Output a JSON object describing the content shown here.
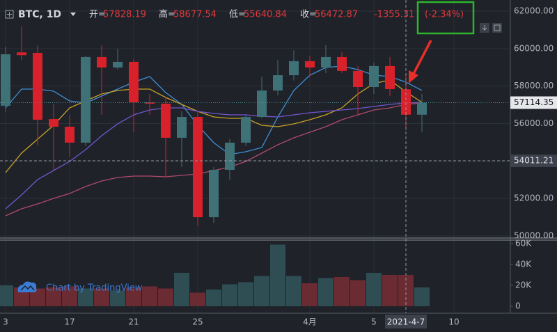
{
  "chart_data": {
    "type": "candlestick",
    "symbol": "BTC, 1D",
    "open_label": "开=",
    "high_label": "高=",
    "low_label": "低=",
    "close_label": "收=",
    "change": -1355.31,
    "change_pct": "(-2.34%)",
    "watermark": "Chart by TradingView",
    "categories": [
      "3",
      null,
      null,
      null,
      "17",
      null,
      null,
      null,
      "21",
      null,
      null,
      null,
      "25",
      null,
      null,
      null,
      null,
      null,
      null,
      "4月",
      null,
      null,
      null,
      "5",
      null,
      "2021-4-7",
      null,
      null,
      "10"
    ],
    "open": [
      56950,
      59800,
      59770,
      56240,
      55830,
      54980,
      59550,
      58990,
      59290,
      57130,
      57060,
      55240,
      56350,
      51000,
      53530,
      54980,
      56350,
      57760,
      58580,
      59330,
      58990,
      59550,
      58810,
      57950,
      59070,
      57828.19,
      56472.87,
      null,
      null
    ],
    "high": [
      60100,
      61200,
      60180,
      57020,
      56460,
      59620,
      60180,
      60000,
      59440,
      57580,
      57400,
      56650,
      56650,
      53680,
      55170,
      56460,
      58500,
      59400,
      59900,
      59620,
      60180,
      59810,
      59070,
      59250,
      59550,
      58677.54,
      57580,
      null,
      null
    ],
    "low": [
      56600,
      59400,
      54800,
      53500,
      54230,
      54800,
      56460,
      58880,
      55540,
      56460,
      53120,
      53680,
      50520,
      50700,
      53000,
      54800,
      56280,
      57500,
      58300,
      58500,
      58700,
      58700,
      56460,
      57580,
      57470,
      55640.84,
      55530,
      null,
      null
    ],
    "close": [
      59700,
      59650,
      56200,
      55830,
      54980,
      59550,
      58990,
      59290,
      57130,
      57060,
      55240,
      56350,
      51000,
      53530,
      54980,
      56350,
      57760,
      58580,
      59330,
      58990,
      59550,
      58810,
      57950,
      59070,
      57840,
      56472.87,
      57114.35,
      null,
      null
    ],
    "up_color": "#3f7277",
    "down_color": "#d8212b",
    "series": [
      {
        "color": "#3f8fd6",
        "values": [
          56836,
          57839,
          57839,
          57728,
          57208,
          57096,
          57468,
          57839,
          58211,
          58508,
          57653,
          57022,
          55907,
          54979,
          54347,
          54496,
          54719,
          56353,
          57765,
          58582,
          58991,
          59065,
          58879,
          58582,
          58508,
          58211,
          57765,
          null,
          null
        ]
      },
      {
        "color": "#c9a227",
        "values": [
          53381,
          54421,
          55164,
          55907,
          56836,
          57208,
          57579,
          57765,
          57839,
          57839,
          57393,
          57022,
          56650,
          56353,
          56279,
          56279,
          55907,
          55833,
          55982,
          56205,
          56465,
          56836,
          57579,
          58136,
          58322,
          57690,
          57133,
          null,
          null
        ]
      },
      {
        "color": "#7356d0",
        "values": [
          51449,
          52192,
          53009,
          53492,
          53975,
          54607,
          55350,
          55982,
          56465,
          56725,
          56836,
          56836,
          56650,
          56539,
          56465,
          56465,
          56390,
          56353,
          56465,
          56576,
          56650,
          56725,
          56799,
          56910,
          57022,
          57096,
          57133,
          null,
          null
        ]
      },
      {
        "color": "#b04a6c",
        "values": [
          51078,
          51449,
          51710,
          52006,
          52266,
          52638,
          52935,
          53121,
          53195,
          53195,
          53158,
          53232,
          53307,
          53492,
          53678,
          53975,
          54421,
          54867,
          55239,
          55536,
          55833,
          56205,
          56465,
          56725,
          56836,
          57022,
          57096,
          null,
          null
        ]
      }
    ],
    "ylim": [
      49888,
      62594
    ],
    "yticks": [
      {
        "value": 50000,
        "label": "50000.00"
      },
      {
        "value": 52000,
        "label": "52000.00"
      },
      {
        "value": 54000,
        "label": "54000.00"
      },
      {
        "value": 56000,
        "label": "56000.00"
      },
      {
        "value": 58000,
        "label": "58000.00"
      },
      {
        "value": 60000,
        "label": "60000.00"
      },
      {
        "value": 62000,
        "label": "62000.00"
      }
    ],
    "grid": true,
    "crosshair": {
      "y": 54011.21,
      "x_index": 25
    },
    "volume": {
      "values": [
        20000,
        18000,
        17000,
        18000,
        19000,
        17000,
        17000,
        15000,
        18000,
        19000,
        17000,
        32000,
        13000,
        16000,
        21000,
        23000,
        29000,
        59000,
        29000,
        22000,
        27000,
        28000,
        25000,
        32000,
        30000,
        30000,
        18000,
        null,
        null
      ],
      "up_color": "#2f4e54",
      "down_color": "#6b2b32",
      "ylim": [
        -6700,
        63300
      ],
      "yticks": [
        0,
        {
          "value": 20000,
          "label": "20K"
        },
        {
          "value": 40000,
          "label": "40K"
        },
        {
          "value": 60000,
          "label": "60K"
        }
      ]
    }
  }
}
